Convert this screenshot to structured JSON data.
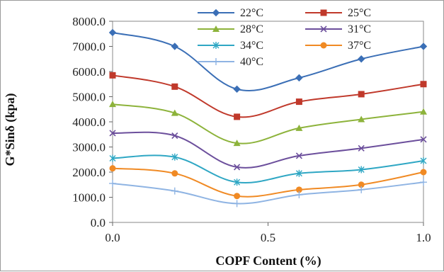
{
  "chart_data": {
    "type": "line",
    "xlabel": "COPF Content (%)",
    "ylabel": "G*Sinδ (kpa)",
    "x": [
      0.0,
      0.2,
      0.4,
      0.6,
      0.8,
      1.0
    ],
    "xlim": [
      0,
      1
    ],
    "ylim": [
      0,
      8000
    ],
    "x_ticks": [
      "0.0",
      "0.5",
      "1.0"
    ],
    "y_ticks": [
      "0.0",
      "1000.0",
      "2000.0",
      "3000.0",
      "4000.0",
      "5000.0",
      "6000.0",
      "7000.0",
      "8000.0"
    ],
    "grid": false,
    "legend_position": "top-right",
    "series": [
      {
        "name": "22°C",
        "color": "#3b6fb6",
        "marker": "diamond",
        "values": [
          7550,
          7000,
          5300,
          5750,
          6500,
          7000
        ]
      },
      {
        "name": "25°C",
        "color": "#c0392b",
        "marker": "square",
        "values": [
          5850,
          5400,
          4200,
          4800,
          5100,
          5500
        ]
      },
      {
        "name": "28°C",
        "color": "#8db33b",
        "marker": "triangle",
        "values": [
          4700,
          4350,
          3150,
          3750,
          4100,
          4400
        ]
      },
      {
        "name": "31°C",
        "color": "#6c4f9c",
        "marker": "x",
        "values": [
          3550,
          3450,
          2200,
          2650,
          2950,
          3300
        ]
      },
      {
        "name": "34°C",
        "color": "#2fa7c4",
        "marker": "star",
        "values": [
          2550,
          2600,
          1600,
          1950,
          2100,
          2450
        ]
      },
      {
        "name": "37°C",
        "color": "#f08a24",
        "marker": "circle",
        "values": [
          2150,
          1950,
          1050,
          1300,
          1500,
          2000
        ]
      },
      {
        "name": "40°C",
        "color": "#8fb4e3",
        "marker": "plus",
        "values": [
          1550,
          1250,
          750,
          1100,
          1300,
          1600
        ]
      }
    ]
  }
}
